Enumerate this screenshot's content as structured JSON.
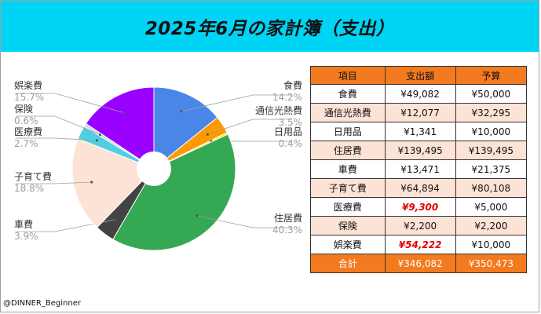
{
  "title": "2025年6月の家計簿（支出）",
  "credit": "@DINNER_Beginner",
  "chart_data": {
    "type": "pie",
    "donut": true,
    "slices": [
      {
        "label": "食費",
        "value": 49082,
        "pct": "14.2%",
        "color": "#4a86e8"
      },
      {
        "label": "通信光熱費",
        "value": 12077,
        "pct": "3.5%",
        "color": "#ff9900"
      },
      {
        "label": "日用品",
        "value": 1341,
        "pct": "0.4%",
        "color": "#ecec00"
      },
      {
        "label": "住居費",
        "value": 139495,
        "pct": "40.3%",
        "color": "#34a853"
      },
      {
        "label": "車費",
        "value": 13471,
        "pct": "3.9%",
        "color": "#434343"
      },
      {
        "label": "子育て費",
        "value": 64894,
        "pct": "18.8%",
        "color": "#fde3d6"
      },
      {
        "label": "医療費",
        "value": 9300,
        "pct": "2.7%",
        "color": "#4dd0e1"
      },
      {
        "label": "保険",
        "value": 2200,
        "pct": "0.6%",
        "color": "#cfd8dc"
      },
      {
        "label": "娯楽費",
        "value": 54222,
        "pct": "15.7%",
        "color": "#9900ff"
      }
    ]
  },
  "table": {
    "headers": [
      "項目",
      "支出額",
      "予算"
    ],
    "rows": [
      {
        "item": "食費",
        "spent": "¥49,082",
        "budget": "¥50,000",
        "over": false
      },
      {
        "item": "通信光熱費",
        "spent": "¥12,077",
        "budget": "¥32,295",
        "over": false
      },
      {
        "item": "日用品",
        "spent": "¥1,341",
        "budget": "¥10,000",
        "over": false
      },
      {
        "item": "住居費",
        "spent": "¥139,495",
        "budget": "¥139,495",
        "over": false
      },
      {
        "item": "車費",
        "spent": "¥13,471",
        "budget": "¥21,375",
        "over": false
      },
      {
        "item": "子育て費",
        "spent": "¥64,894",
        "budget": "¥80,108",
        "over": false
      },
      {
        "item": "医療費",
        "spent": "¥9,300",
        "budget": "¥5,000",
        "over": true
      },
      {
        "item": "保険",
        "spent": "¥2,200",
        "budget": "¥2,200",
        "over": false
      },
      {
        "item": "娯楽費",
        "spent": "¥54,222",
        "budget": "¥10,000",
        "over": true
      }
    ],
    "total": {
      "item": "合計",
      "spent": "¥346,082",
      "budget": "¥350,473"
    }
  }
}
